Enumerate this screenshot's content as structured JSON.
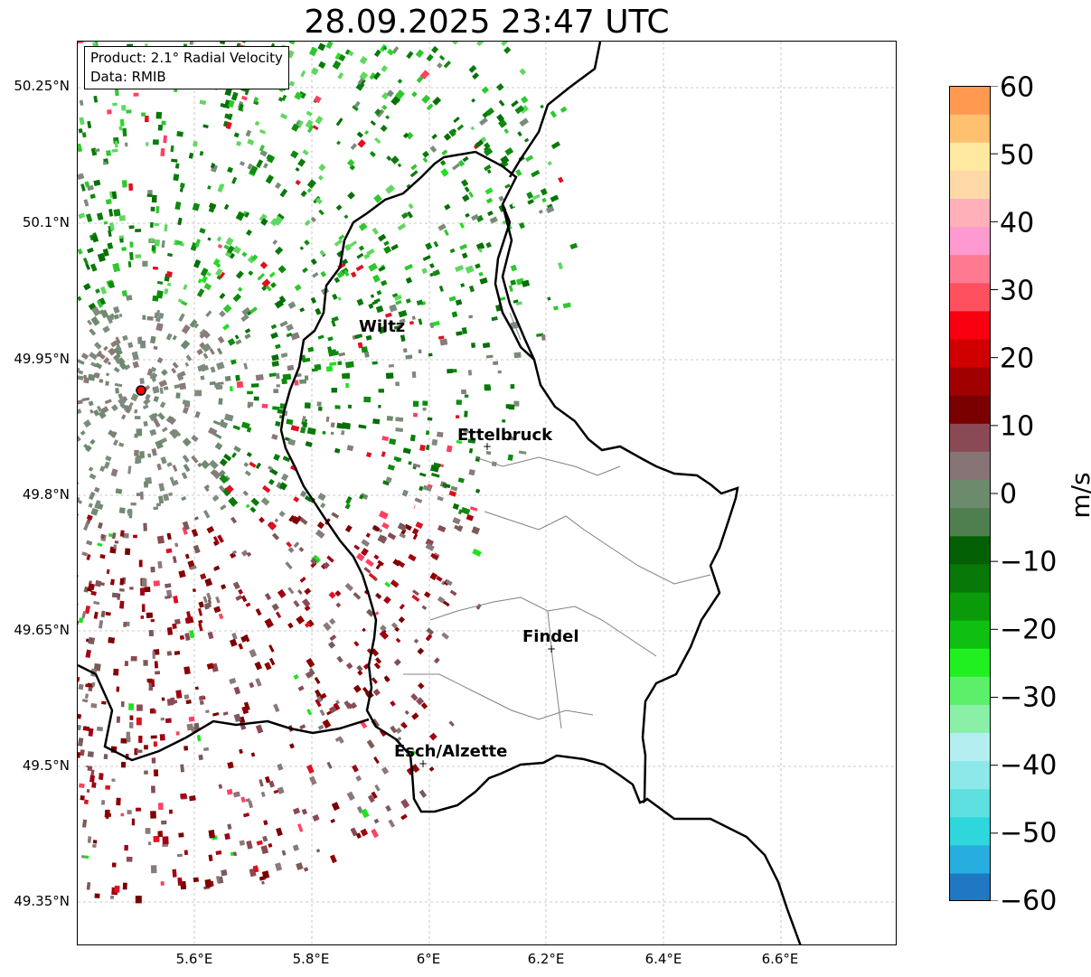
{
  "title": "28.09.2025 23:47 UTC",
  "info": {
    "product": "Product: 2.1° Radial Velocity",
    "source": "Data: RMIB"
  },
  "axes": {
    "lat_ticks": [
      "50.25°N",
      "50.1°N",
      "49.95°N",
      "49.8°N",
      "49.65°N",
      "49.5°N",
      "49.35°N"
    ],
    "lon_ticks": [
      "5.6°E",
      "5.8°E",
      "6°E",
      "6.2°E",
      "6.4°E",
      "6.6°E"
    ]
  },
  "colorbar": {
    "ticks": [
      "60",
      "50",
      "40",
      "30",
      "20",
      "10",
      "0",
      "−10",
      "−20",
      "−30",
      "−40",
      "−50",
      "−60"
    ],
    "label": "m/s",
    "min": -60,
    "max": 60,
    "colors": [
      "#1f78c1",
      "#28aede",
      "#2fd6dc",
      "#5ee0e0",
      "#8de8ea",
      "#b5eef0",
      "#8af0a8",
      "#5cf06a",
      "#20f020",
      "#10c010",
      "#0a9a0a",
      "#087808",
      "#056005",
      "#4f7f4f",
      "#6c8a6c",
      "#877575",
      "#8a4a55",
      "#7a0000",
      "#a00000",
      "#d00000",
      "#f80010",
      "#ff5060",
      "#ff7a90",
      "#ff9ad0",
      "#ffb0b8",
      "#ffd8a8",
      "#ffe8a0",
      "#ffc070",
      "#ff9a50"
    ]
  },
  "cities": [
    {
      "name": "Wiltz"
    },
    {
      "name": "Ettelbruck"
    },
    {
      "name": "Findel"
    },
    {
      "name": "Esch/Alzette"
    }
  ],
  "radar_colors": {
    "outbound": "#8b0000",
    "approaching": "#0a7a0a",
    "near_zero": "#7b8b7b",
    "radar_site": "#ff0000"
  }
}
